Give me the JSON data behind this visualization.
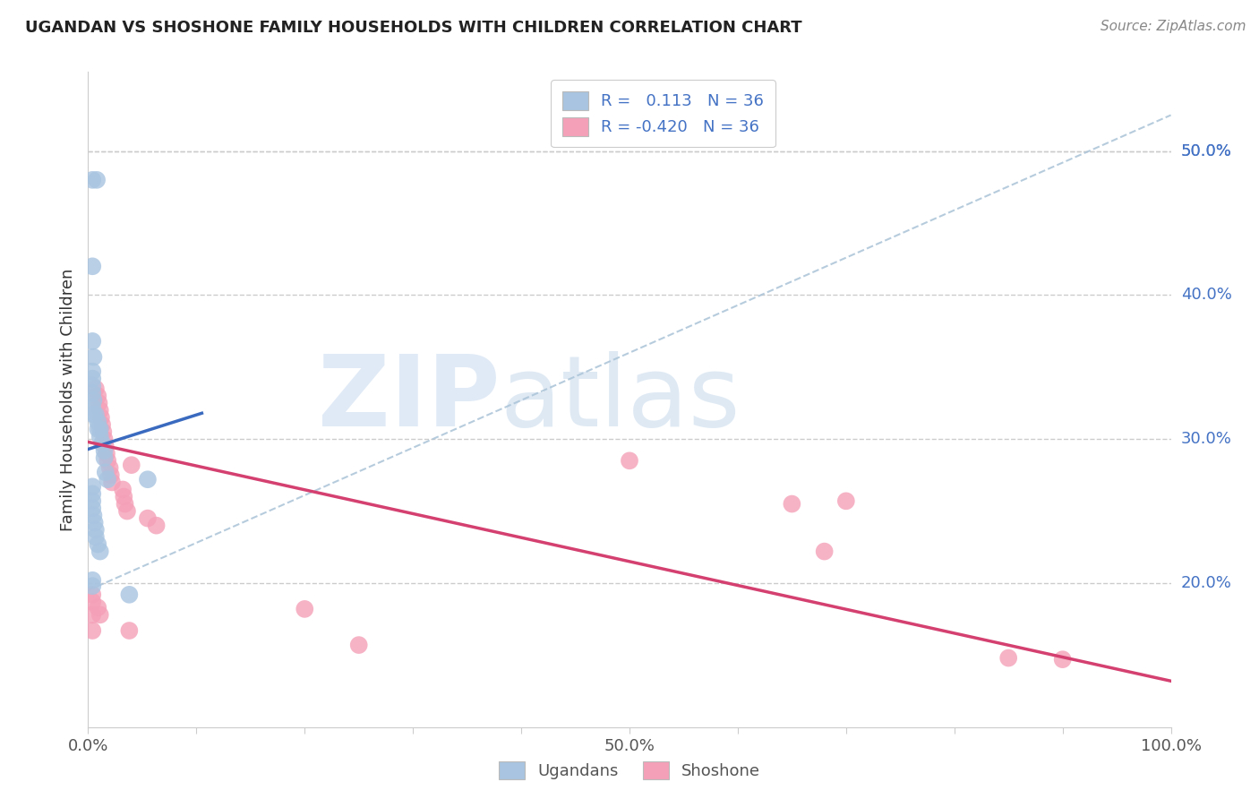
{
  "title": "UGANDAN VS SHOSHONE FAMILY HOUSEHOLDS WITH CHILDREN CORRELATION CHART",
  "source": "Source: ZipAtlas.com",
  "ylabel": "Family Households with Children",
  "ugandan_color": "#a8c4e0",
  "shoshone_color": "#f4a0b8",
  "ugandan_line_color": "#3a6abf",
  "shoshone_line_color": "#d44070",
  "dashed_line_color": "#aac4d8",
  "xlim": [
    0.0,
    1.0
  ],
  "ylim": [
    0.1,
    0.555
  ],
  "yticks_right": [
    0.2,
    0.3,
    0.4,
    0.5
  ],
  "ytick_labels_right": [
    "20.0%",
    "30.0%",
    "40.0%",
    "50.0%"
  ],
  "ugandan_x": [
    0.004,
    0.008,
    0.004,
    0.004,
    0.005,
    0.004,
    0.004,
    0.004,
    0.004,
    0.005,
    0.004,
    0.005,
    0.007,
    0.009,
    0.009,
    0.011,
    0.011,
    0.013,
    0.015,
    0.015,
    0.016,
    0.018,
    0.004,
    0.004,
    0.004,
    0.004,
    0.005,
    0.006,
    0.007,
    0.007,
    0.009,
    0.011,
    0.004,
    0.038,
    0.055,
    0.004
  ],
  "ugandan_y": [
    0.48,
    0.48,
    0.42,
    0.368,
    0.357,
    0.347,
    0.342,
    0.337,
    0.332,
    0.327,
    0.322,
    0.317,
    0.317,
    0.312,
    0.307,
    0.307,
    0.302,
    0.297,
    0.292,
    0.287,
    0.277,
    0.272,
    0.267,
    0.262,
    0.257,
    0.252,
    0.247,
    0.242,
    0.237,
    0.232,
    0.227,
    0.222,
    0.198,
    0.192,
    0.272,
    0.202
  ],
  "shoshone_x": [
    0.007,
    0.009,
    0.01,
    0.011,
    0.012,
    0.013,
    0.014,
    0.015,
    0.016,
    0.017,
    0.018,
    0.02,
    0.021,
    0.022,
    0.032,
    0.033,
    0.034,
    0.036,
    0.04,
    0.055,
    0.063,
    0.004,
    0.004,
    0.004,
    0.004,
    0.009,
    0.011,
    0.038,
    0.5,
    0.2,
    0.25,
    0.65,
    0.68,
    0.7,
    0.85,
    0.9
  ],
  "shoshone_y": [
    0.335,
    0.33,
    0.325,
    0.32,
    0.315,
    0.31,
    0.305,
    0.3,
    0.295,
    0.29,
    0.285,
    0.28,
    0.275,
    0.27,
    0.265,
    0.26,
    0.255,
    0.25,
    0.282,
    0.245,
    0.24,
    0.192,
    0.187,
    0.178,
    0.167,
    0.183,
    0.178,
    0.167,
    0.285,
    0.182,
    0.157,
    0.255,
    0.222,
    0.257,
    0.148,
    0.147
  ],
  "ugandan_line_x0": 0.0,
  "ugandan_line_x1": 0.105,
  "ugandan_line_y0": 0.293,
  "ugandan_line_y1": 0.318,
  "shoshone_line_x0": 0.0,
  "shoshone_line_x1": 1.0,
  "shoshone_line_y0": 0.298,
  "shoshone_line_y1": 0.132,
  "dashed_line_x0": 0.0,
  "dashed_line_x1": 1.0,
  "dashed_line_y0": 0.195,
  "dashed_line_y1": 0.525,
  "legend1_label1": "R =   0.113   N = 36",
  "legend1_label2": "R = -0.420   N = 36",
  "legend2_label1": "Ugandans",
  "legend2_label2": "Shoshone"
}
